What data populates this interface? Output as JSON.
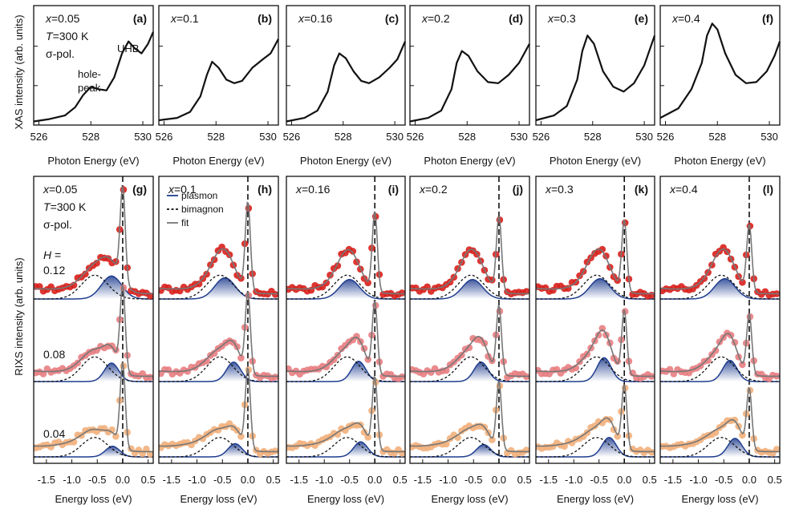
{
  "chart_data": {
    "type": "line",
    "xas": {
      "ylabel": "XAS intensity (arb. units)",
      "xlabel": "Photon Energy (eV)",
      "xlim": [
        525.8,
        530.4
      ],
      "xticks": [
        "526",
        "528",
        "530"
      ],
      "panels": [
        {
          "tag": "(a)",
          "x_label": "x=0.05",
          "extra": [
            "T=300 K",
            "σ-pol."
          ],
          "annotations": [
            "UHB",
            "hole-",
            "peak"
          ],
          "curve": [
            [
              525.8,
              0.03
            ],
            [
              526.4,
              0.05
            ],
            [
              527.0,
              0.08
            ],
            [
              527.4,
              0.15
            ],
            [
              527.7,
              0.25
            ],
            [
              528.0,
              0.32
            ],
            [
              528.3,
              0.3
            ],
            [
              528.6,
              0.29
            ],
            [
              528.9,
              0.4
            ],
            [
              529.2,
              0.6
            ],
            [
              529.45,
              0.7
            ],
            [
              529.7,
              0.64
            ],
            [
              529.95,
              0.6
            ],
            [
              530.2,
              0.68
            ],
            [
              530.4,
              0.78
            ]
          ]
        },
        {
          "tag": "(b)",
          "x_label": "x=0.1",
          "curve": [
            [
              525.8,
              0.04
            ],
            [
              526.5,
              0.06
            ],
            [
              527.0,
              0.11
            ],
            [
              527.4,
              0.24
            ],
            [
              527.65,
              0.42
            ],
            [
              527.85,
              0.53
            ],
            [
              528.1,
              0.48
            ],
            [
              528.4,
              0.38
            ],
            [
              528.7,
              0.35
            ],
            [
              529.0,
              0.37
            ],
            [
              529.4,
              0.48
            ],
            [
              529.8,
              0.55
            ],
            [
              530.1,
              0.6
            ],
            [
              530.4,
              0.72
            ]
          ]
        },
        {
          "tag": "(c)",
          "x_label": "x=0.16",
          "curve": [
            [
              525.8,
              0.03
            ],
            [
              526.5,
              0.06
            ],
            [
              527.0,
              0.12
            ],
            [
              527.4,
              0.28
            ],
            [
              527.65,
              0.5
            ],
            [
              527.85,
              0.6
            ],
            [
              528.1,
              0.56
            ],
            [
              528.4,
              0.45
            ],
            [
              528.7,
              0.37
            ],
            [
              529.0,
              0.35
            ],
            [
              529.4,
              0.4
            ],
            [
              529.8,
              0.48
            ],
            [
              530.1,
              0.55
            ],
            [
              530.4,
              0.7
            ]
          ]
        },
        {
          "tag": "(d)",
          "x_label": "x=0.2",
          "curve": [
            [
              525.8,
              0.03
            ],
            [
              526.5,
              0.06
            ],
            [
              527.0,
              0.12
            ],
            [
              527.4,
              0.3
            ],
            [
              527.6,
              0.52
            ],
            [
              527.8,
              0.62
            ],
            [
              528.05,
              0.58
            ],
            [
              528.4,
              0.45
            ],
            [
              528.8,
              0.36
            ],
            [
              529.2,
              0.35
            ],
            [
              529.6,
              0.42
            ],
            [
              530.0,
              0.52
            ],
            [
              530.4,
              0.68
            ]
          ]
        },
        {
          "tag": "(e)",
          "x_label": "x=0.3",
          "curve": [
            [
              525.8,
              0.04
            ],
            [
              526.5,
              0.08
            ],
            [
              527.0,
              0.16
            ],
            [
              527.4,
              0.38
            ],
            [
              527.6,
              0.62
            ],
            [
              527.8,
              0.75
            ],
            [
              528.05,
              0.68
            ],
            [
              528.4,
              0.45
            ],
            [
              528.8,
              0.32
            ],
            [
              529.2,
              0.28
            ],
            [
              529.6,
              0.35
            ],
            [
              530.0,
              0.5
            ],
            [
              530.4,
              0.75
            ]
          ]
        },
        {
          "tag": "(f)",
          "x_label": "x=0.4",
          "curve": [
            [
              525.8,
              0.06
            ],
            [
              526.5,
              0.14
            ],
            [
              527.0,
              0.3
            ],
            [
              527.4,
              0.52
            ],
            [
              527.6,
              0.75
            ],
            [
              527.8,
              0.85
            ],
            [
              528.0,
              0.8
            ],
            [
              528.3,
              0.6
            ],
            [
              528.7,
              0.42
            ],
            [
              529.1,
              0.35
            ],
            [
              529.5,
              0.36
            ],
            [
              529.9,
              0.45
            ],
            [
              530.2,
              0.58
            ],
            [
              530.4,
              0.7
            ]
          ]
        }
      ]
    },
    "rixs": {
      "ylabel": "RIXS intensity (arb. units)",
      "xlabel": "Energy loss (eV)",
      "xlim": [
        -1.75,
        0.6
      ],
      "xticks": [
        "-1.5",
        "-1.0",
        "-0.5",
        "0.0",
        "0.5"
      ],
      "field_label": "H =",
      "h_values": [
        "0.12",
        "0.08",
        "0.04"
      ],
      "legend": [
        "plasmon",
        "bimagnon",
        "fit"
      ],
      "colors": {
        "h012": "#d8201c",
        "h008": "#e87e82",
        "h004": "#f2b07c",
        "plasmon": "#1f3d8f",
        "bimagnon": "#111111",
        "fit": "#777777",
        "elastic": "#111111"
      },
      "panels": [
        {
          "tag": "(g)",
          "x_label": "x=0.05",
          "extra": [
            "T=300 K",
            "σ-pol."
          ],
          "plasmon_pos": [
            -0.22,
            -0.22,
            -0.2
          ],
          "plasmon_amp": [
            0.26,
            0.21,
            0.12
          ],
          "bimagnon_pos": -0.55,
          "elastic_amp": 1.05
        },
        {
          "tag": "(h)",
          "x_label": "x=0.1",
          "plasmon_pos": [
            -0.45,
            -0.28,
            -0.25
          ],
          "plasmon_amp": [
            0.24,
            0.22,
            0.15
          ],
          "bimagnon_pos": -0.55,
          "elastic_amp": 1.0
        },
        {
          "tag": "(i)",
          "x_label": "x=0.16",
          "plasmon_pos": [
            -0.5,
            -0.32,
            -0.28
          ],
          "plasmon_amp": [
            0.22,
            0.23,
            0.17
          ],
          "bimagnon_pos": -0.55,
          "elastic_amp": 0.9
        },
        {
          "tag": "(j)",
          "x_label": "x=0.2",
          "plasmon_pos": [
            -0.52,
            -0.35,
            -0.3
          ],
          "plasmon_amp": [
            0.22,
            0.22,
            0.14
          ],
          "bimagnon_pos": -0.55,
          "elastic_amp": 0.85
        },
        {
          "tag": "(k)",
          "x_label": "x=0.3",
          "plasmon_pos": [
            -0.48,
            -0.4,
            -0.3
          ],
          "plasmon_amp": [
            0.23,
            0.27,
            0.22
          ],
          "bimagnon_pos": -0.55,
          "elastic_amp": 0.8
        },
        {
          "tag": "(l)",
          "x_label": "x=0.4",
          "plasmon_pos": [
            -0.48,
            -0.38,
            -0.28
          ],
          "plasmon_amp": [
            0.23,
            0.24,
            0.21
          ],
          "bimagnon_pos": -0.55,
          "elastic_amp": 0.75
        }
      ]
    }
  }
}
